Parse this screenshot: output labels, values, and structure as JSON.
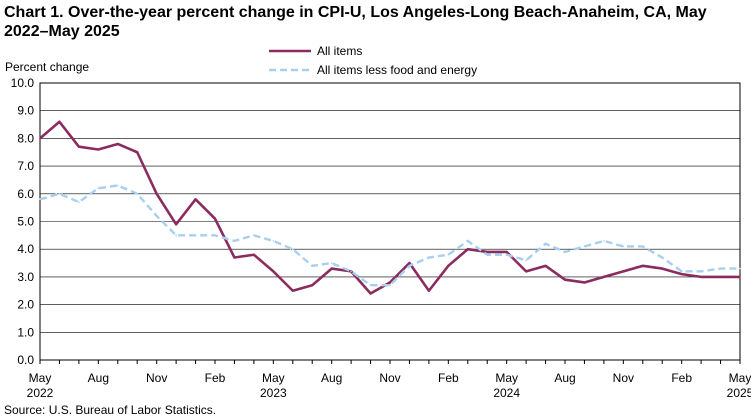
{
  "title": "Chart 1. Over-the-year percent change in CPI-U, Los Angeles-Long Beach-Anaheim, CA, May 2022–May 2025",
  "source": "Source: U.S. Bureau of Labor Statistics.",
  "colors": {
    "all_items": "#8b2c5f",
    "core": "#a8cff0",
    "axis": "#000000",
    "grid": "#000000"
  },
  "chart_data": {
    "type": "line",
    "title": "Over-the-year percent change in CPI-U, Los Angeles-Long Beach-Anaheim, CA, May 2022–May 2025",
    "ylabel": "Percent change",
    "xlabel": "",
    "ylim": [
      0,
      10
    ],
    "yticks": [
      "0.0",
      "1.0",
      "2.0",
      "3.0",
      "4.0",
      "5.0",
      "6.0",
      "7.0",
      "8.0",
      "9.0",
      "10.0"
    ],
    "grid": true,
    "legend_position": "top-center",
    "x": [
      "May 2022",
      "Jun 2022",
      "Jul 2022",
      "Aug 2022",
      "Sep 2022",
      "Oct 2022",
      "Nov 2022",
      "Dec 2022",
      "Jan 2023",
      "Feb 2023",
      "Mar 2023",
      "Apr 2023",
      "May 2023",
      "Jun 2023",
      "Jul 2023",
      "Aug 2023",
      "Sep 2023",
      "Oct 2023",
      "Nov 2023",
      "Dec 2023",
      "Jan 2024",
      "Feb 2024",
      "Mar 2024",
      "Apr 2024",
      "May 2024",
      "Jun 2024",
      "Jul 2024",
      "Aug 2024",
      "Sep 2024",
      "Oct 2024",
      "Nov 2024",
      "Dec 2024",
      "Jan 2025",
      "Feb 2025",
      "Mar 2025",
      "Apr 2025",
      "May 2025"
    ],
    "xtick_labels": [
      {
        "index": 0,
        "month": "May",
        "year": "2022"
      },
      {
        "index": 3,
        "month": "Aug",
        "year": ""
      },
      {
        "index": 6,
        "month": "Nov",
        "year": ""
      },
      {
        "index": 9,
        "month": "Feb",
        "year": ""
      },
      {
        "index": 12,
        "month": "May",
        "year": "2023"
      },
      {
        "index": 15,
        "month": "Aug",
        "year": ""
      },
      {
        "index": 18,
        "month": "Nov",
        "year": ""
      },
      {
        "index": 21,
        "month": "Feb",
        "year": ""
      },
      {
        "index": 24,
        "month": "May",
        "year": "2024"
      },
      {
        "index": 27,
        "month": "Aug",
        "year": ""
      },
      {
        "index": 30,
        "month": "Nov",
        "year": ""
      },
      {
        "index": 33,
        "month": "Feb",
        "year": ""
      },
      {
        "index": 36,
        "month": "May",
        "year": "2025"
      }
    ],
    "series": [
      {
        "name": "All items",
        "style": "solid",
        "values": [
          8.0,
          8.6,
          7.7,
          7.6,
          7.8,
          7.5,
          6.0,
          4.9,
          5.8,
          5.1,
          3.7,
          3.8,
          3.2,
          2.5,
          2.7,
          3.3,
          3.2,
          2.4,
          2.8,
          3.5,
          2.5,
          3.4,
          4.0,
          3.9,
          3.9,
          3.2,
          3.4,
          2.9,
          2.8,
          3.0,
          3.2,
          3.4,
          3.3,
          3.1,
          3.0,
          3.0,
          3.0
        ]
      },
      {
        "name": "All items less food and energy",
        "style": "dashed",
        "values": [
          5.8,
          6.0,
          5.7,
          6.2,
          6.3,
          6.0,
          5.2,
          4.5,
          4.5,
          4.5,
          4.3,
          4.5,
          4.3,
          4.0,
          3.4,
          3.5,
          3.2,
          2.7,
          2.7,
          3.4,
          3.7,
          3.8,
          4.3,
          3.8,
          3.8,
          3.6,
          4.2,
          3.9,
          4.1,
          4.3,
          4.1,
          4.1,
          3.7,
          3.2,
          3.2,
          3.3,
          3.3
        ]
      }
    ]
  }
}
